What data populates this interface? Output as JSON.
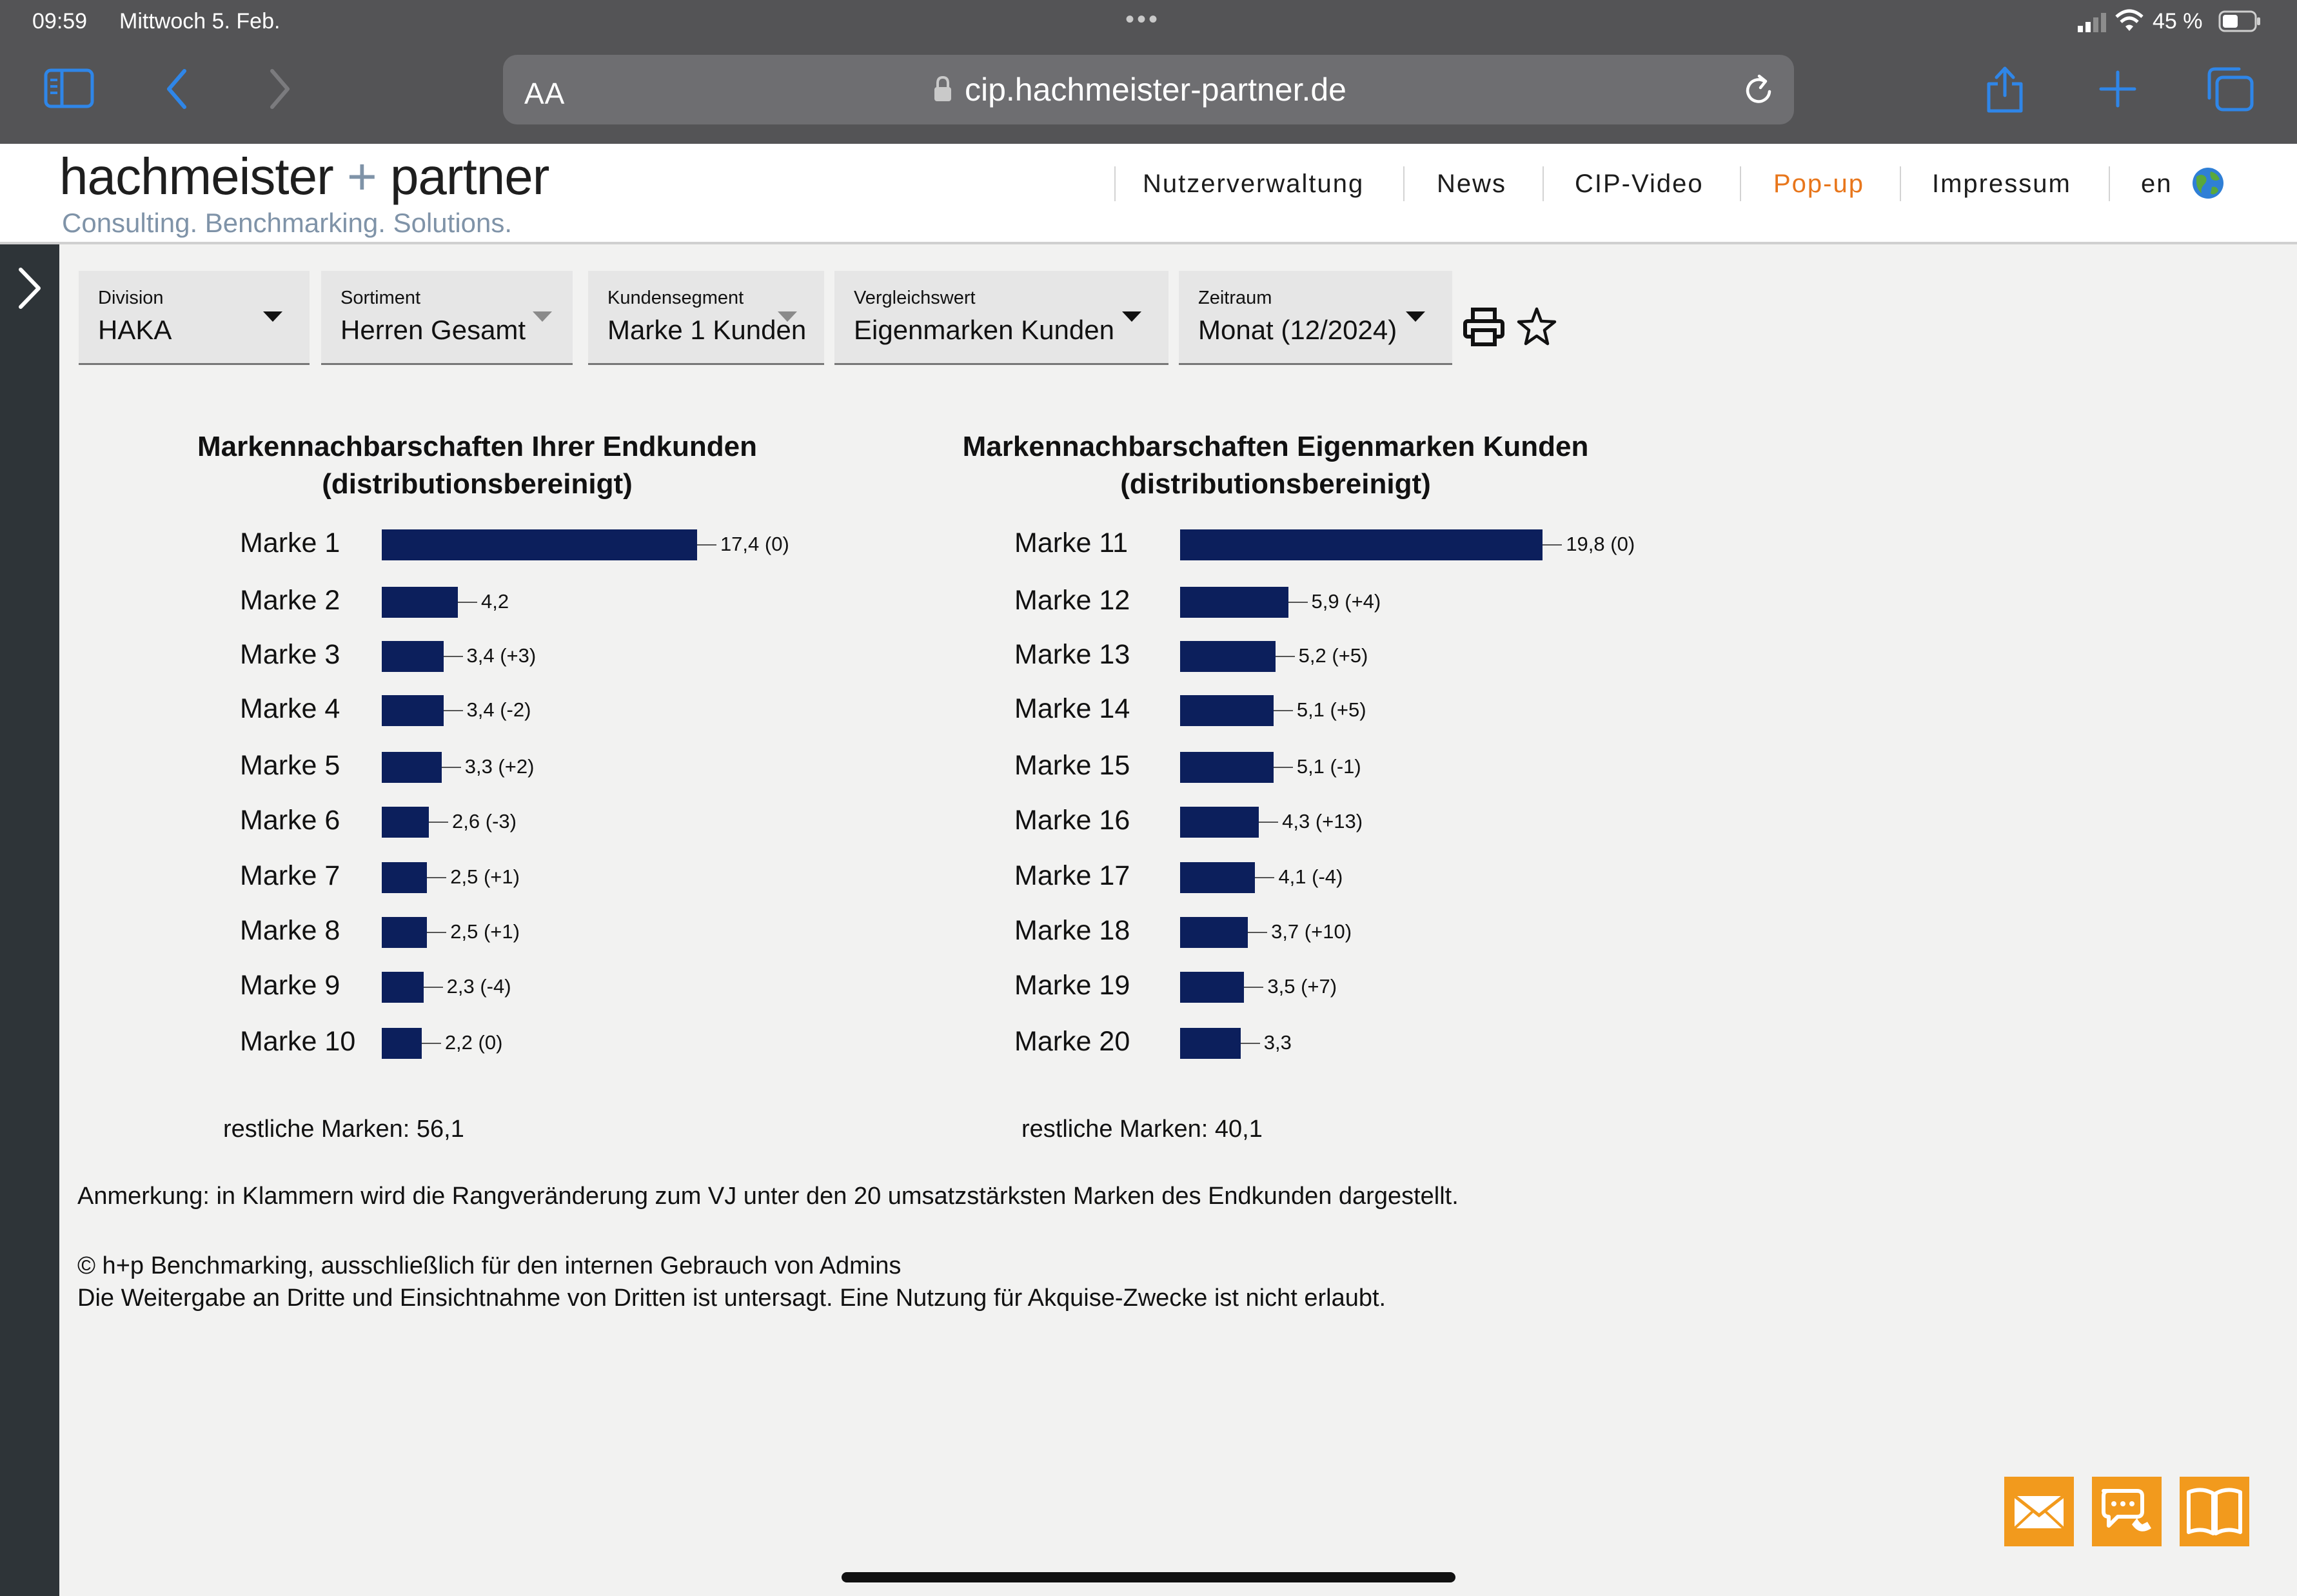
{
  "status_bar": {
    "time": "09:59",
    "date": "Mittwoch 5. Feb.",
    "battery": "45 %",
    "dots": "•••"
  },
  "browser": {
    "text_size_label": "AA",
    "url": "cip.hachmeister-partner.de"
  },
  "brand": {
    "name_left": "hachmeister",
    "plus": "+",
    "name_right": "partner",
    "tagline": "Consulting. Benchmarking. Solutions."
  },
  "nav": {
    "items": [
      {
        "label": "Nutzerverwaltung"
      },
      {
        "label": "News"
      },
      {
        "label": "CIP-Video"
      },
      {
        "label": "Pop-up"
      },
      {
        "label": "Impressum"
      },
      {
        "label": "en"
      }
    ],
    "active_color": "#e8761b"
  },
  "filters": [
    {
      "label": "Division",
      "value": "HAKA"
    },
    {
      "label": "Sortiment",
      "value": "Herren Gesamt"
    },
    {
      "label": "Kundensegment",
      "value": "Marke 1 Kunden"
    },
    {
      "label": "Vergleichswert",
      "value": "Eigenmarken Kunden"
    },
    {
      "label": "Zeitraum",
      "value": "Monat (12/2024)"
    }
  ],
  "chart_data": [
    {
      "type": "bar",
      "orientation": "horizontal",
      "title": "Markennachbarschaften Ihrer Endkunden",
      "subtitle": "(distributionsbereinigt)",
      "categories": [
        "Marke 1",
        "Marke 2",
        "Marke 3",
        "Marke 4",
        "Marke 5",
        "Marke 6",
        "Marke 7",
        "Marke 8",
        "Marke 9",
        "Marke 10"
      ],
      "values": [
        17.4,
        4.2,
        3.4,
        3.4,
        3.3,
        2.6,
        2.5,
        2.5,
        2.3,
        2.2
      ],
      "data_labels": [
        "17,4 (0)",
        "4,2",
        "3,4 (+3)",
        "3,4 (-2)",
        "3,3 (+2)",
        "2,6 (-3)",
        "2,5 (+1)",
        "2,5 (+1)",
        "2,3 (-4)",
        "2,2 (0)"
      ],
      "bar_color": "#0c1f5c",
      "footer": "restliche Marken: 56,1"
    },
    {
      "type": "bar",
      "orientation": "horizontal",
      "title": "Markennachbarschaften Eigenmarken Kunden",
      "subtitle": "(distributionsbereinigt)",
      "categories": [
        "Marke 11",
        "Marke 12",
        "Marke 13",
        "Marke 14",
        "Marke 15",
        "Marke 16",
        "Marke 17",
        "Marke 18",
        "Marke 19",
        "Marke 20"
      ],
      "values": [
        19.8,
        5.9,
        5.2,
        5.1,
        5.1,
        4.3,
        4.1,
        3.7,
        3.5,
        3.3
      ],
      "data_labels": [
        "19,8 (0)",
        "5,9 (+4)",
        "5,2 (+5)",
        "5,1 (+5)",
        "5,1 (-1)",
        "4,3 (+13)",
        "4,1 (-4)",
        "3,7 (+10)",
        "3,5 (+7)",
        "3,3"
      ],
      "bar_color": "#0c1f5c",
      "footer": "restliche Marken: 40,1"
    }
  ],
  "notes": {
    "remark": "Anmerkung: in Klammern wird die Rangveränderung zum VJ unter den 20 umsatzstärksten Marken des Endkunden dargestellt.",
    "copyright": "© h+p Benchmarking, ausschließlich für den internen Gebrauch von Admins",
    "disclaimer": "Die Weitergabe an Dritte und Einsichtnahme von Dritten ist untersagt. Eine Nutzung für Akquise-Zwecke ist nicht erlaubt."
  },
  "icons": {
    "sidebar_toggle": "sidebar-icon",
    "back": "chevron-left-icon",
    "forward": "chevron-right-icon",
    "lock": "lock-icon",
    "reload": "reload-icon",
    "share": "share-icon",
    "new_tab": "plus-icon",
    "tabs": "tabs-icon",
    "expand": "chevron-right-icon",
    "print": "printer-icon",
    "favorite": "star-icon",
    "mail": "mail-icon",
    "chat": "chat-icon",
    "manual": "book-icon"
  }
}
